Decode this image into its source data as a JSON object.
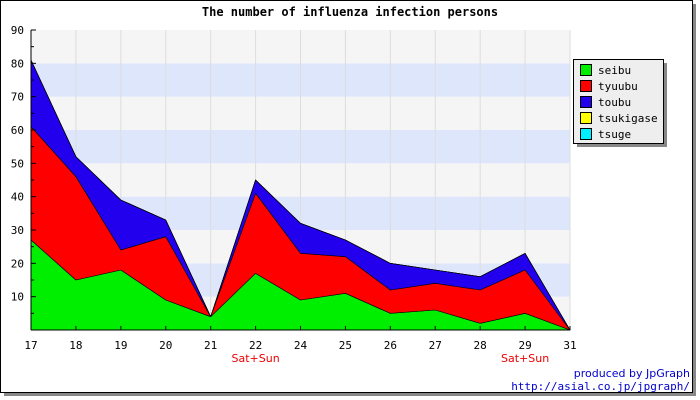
{
  "chart_data": {
    "type": "area",
    "stacked": true,
    "title": "The number of influenza infection persons",
    "categories": [
      "17",
      "18",
      "19",
      "20",
      "21",
      "22",
      "24",
      "25",
      "26",
      "27",
      "28",
      "29",
      "31"
    ],
    "ylim": [
      0,
      90
    ],
    "yticks": [
      10,
      20,
      30,
      40,
      50,
      60,
      70,
      80,
      90
    ],
    "grid": true,
    "legend_position": "top-right",
    "series": [
      {
        "name": "seibu",
        "color": "#00ee00",
        "values": [
          27,
          15,
          18,
          9,
          4,
          17,
          9,
          11,
          5,
          6,
          2,
          5,
          0
        ]
      },
      {
        "name": "tyuubu",
        "color": "#ff0000",
        "values": [
          34,
          31,
          6,
          19,
          0,
          24,
          14,
          11,
          7,
          8,
          10,
          13,
          0
        ]
      },
      {
        "name": "toubu",
        "color": "#2200ee",
        "values": [
          20,
          6,
          15,
          5,
          0,
          4,
          9,
          5,
          8,
          4,
          4,
          5,
          0
        ]
      },
      {
        "name": "tsukigase",
        "color": "#ffff00",
        "values": [
          0,
          0,
          0,
          0,
          0,
          0,
          0,
          0,
          0,
          0,
          0,
          0,
          0
        ]
      },
      {
        "name": "tsuge",
        "color": "#00eeff",
        "values": [
          0,
          0,
          0,
          0,
          0,
          0,
          0,
          0,
          0,
          0,
          0,
          0,
          0
        ]
      }
    ],
    "annotations": [
      {
        "category": "22",
        "text": "Sat+Sun",
        "color": "#ee0000"
      },
      {
        "category": "29",
        "text": "Sat+Sun",
        "color": "#ee0000"
      }
    ],
    "credit": {
      "line1": "produced by JpGraph",
      "line2": "http://asial.co.jp/jpgraph/",
      "color": "#0000cc"
    }
  }
}
